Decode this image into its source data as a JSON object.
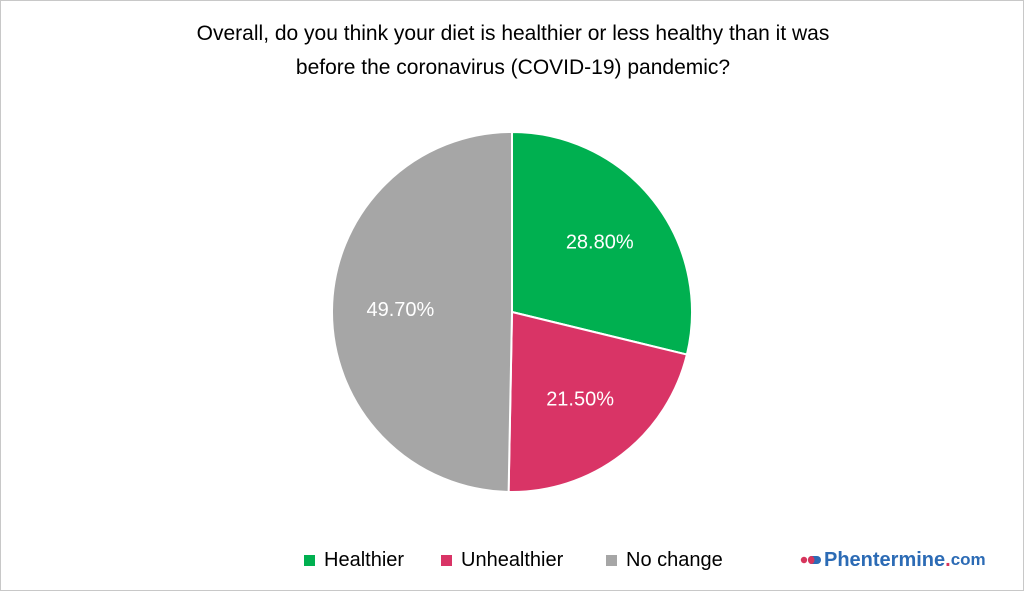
{
  "chart_data": {
    "type": "pie",
    "title_lines": [
      "Overall, do you think your diet is healthier or less healthy than it was",
      "before the coronavirus (COVID-19) pandemic?"
    ],
    "categories": [
      "Healthier",
      "Unhealthier",
      "No change"
    ],
    "values": [
      28.8,
      21.5,
      49.7
    ],
    "data_labels": [
      "28.80%",
      "21.50%",
      "49.70%"
    ],
    "colors": [
      "#00b050",
      "#d93466",
      "#a6a6a6"
    ],
    "legend_position": "bottom",
    "start_angle": "12 o'clock",
    "direction": "clockwise"
  },
  "legend": {
    "items": [
      {
        "label": "Healthier",
        "color": "#00b050"
      },
      {
        "label": "Unhealthier",
        "color": "#d93466"
      },
      {
        "label": "No change",
        "color": "#a6a6a6"
      }
    ]
  },
  "brand": {
    "name": "Phentermine",
    "dot": ".",
    "tld": "com",
    "logo_icon": "capsule-icon"
  }
}
